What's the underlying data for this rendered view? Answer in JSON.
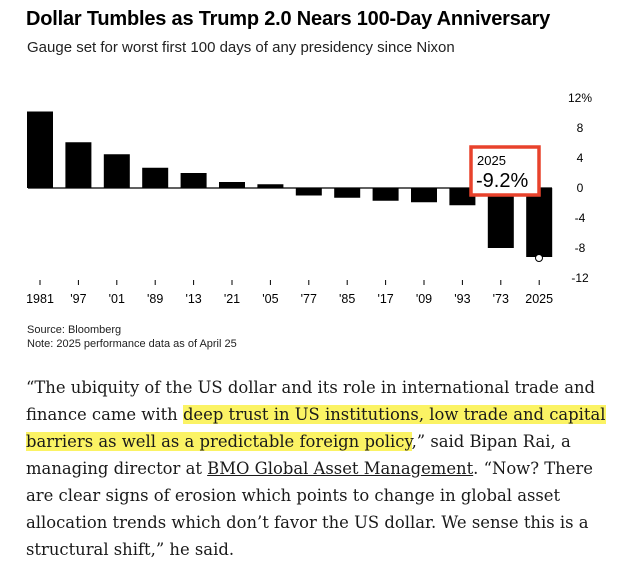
{
  "header": {
    "title": "Dollar Tumbles as Trump 2.0 Nears 100-Day Anniversary",
    "subtitle": "Gauge set for worst first 100 days of any presidency since Nixon"
  },
  "chart_data": {
    "type": "bar",
    "title": "Dollar Tumbles as Trump 2.0 Nears 100-Day Anniversary",
    "subtitle": "Gauge set for worst first 100 days of any presidency since Nixon",
    "categories": [
      "1981",
      "'97",
      "'01",
      "'89",
      "'13",
      "'21",
      "'05",
      "'77",
      "'85",
      "'17",
      "'09",
      "'93",
      "'73",
      "2025"
    ],
    "values": [
      10.2,
      6.1,
      4.5,
      2.7,
      2.0,
      0.8,
      0.5,
      -1.0,
      -1.3,
      -1.7,
      -1.9,
      -2.3,
      -8.0,
      -9.2
    ],
    "ylim": [
      -12,
      12
    ],
    "yticks": [
      12,
      8,
      4,
      0,
      -4,
      -8,
      -12
    ],
    "ytick_labels": [
      "12%",
      "8",
      "4",
      "0",
      "-4",
      "-8",
      "-12"
    ],
    "xlabel": "",
    "ylabel": "",
    "grid": false,
    "bar_color": "#000000",
    "highlight_color": "#e8422c",
    "annotation": {
      "category": "2025",
      "label": "2025",
      "value_text": "-9.2%"
    }
  },
  "footer": {
    "source": "Source: Bloomberg",
    "note": "Note: 2025 performance data as of April 25"
  },
  "quote": {
    "part1": "“The ubiquity of the US dollar and its role in international trade and finance came with ",
    "highlight": "deep trust in US institutions, low trade and capital barriers as well as a predictable foreign policy",
    "part2": ",” said Bipan Rai, a managing director at ",
    "link": "BMO Global Asset Management",
    "part3": ". “Now? There are clear signs of erosion which points to change in global asset allocation trends which don’t favor the US dollar. We sense this is a structural shift,” he said."
  }
}
